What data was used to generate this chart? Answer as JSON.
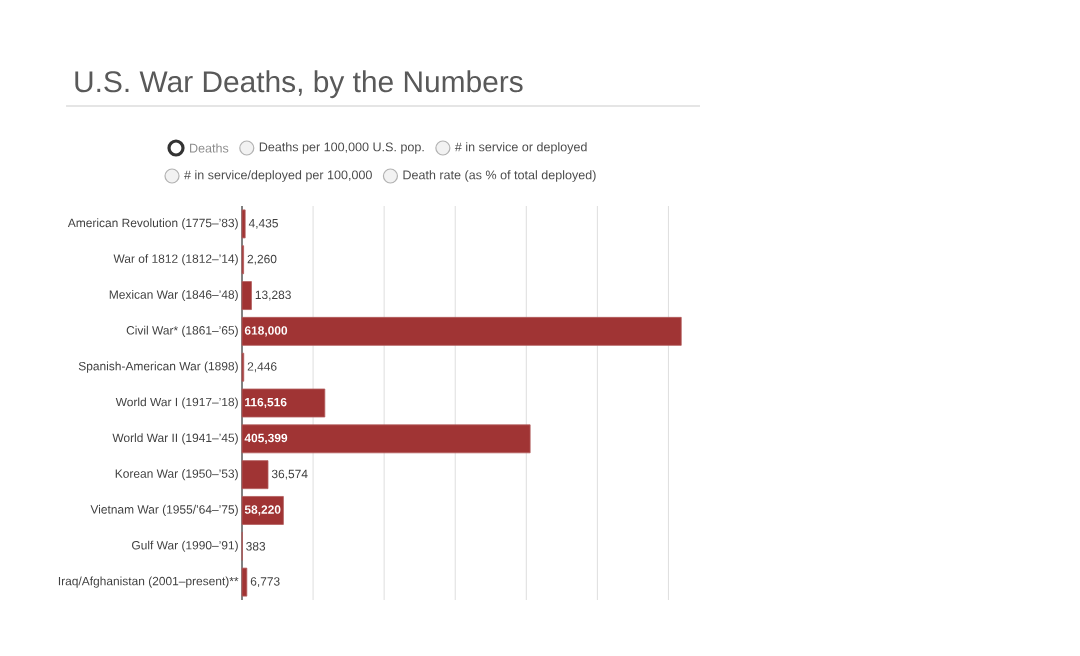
{
  "chart_data": {
    "type": "bar",
    "orientation": "horizontal",
    "title": "U.S. War Deaths, by the Numbers",
    "annotations": [
      "Deaths",
      "Deaths per 100,000 U.S. pop.",
      "# in service or deployed",
      "# in service/deployed per 100,000",
      "Death rate (as % of total deployed)"
    ],
    "categories": [
      "American Revolution (1775–’83)",
      "War of 1812 (1812–’14)",
      "Mexican War (1846–’48)",
      "Civil War* (1861–’65)",
      "Spanish-American War (1898)",
      "World War I (1917–’18)",
      "World War II (1941–’45)",
      "Korean War (1950–’53)",
      "Vietnam War (1955/’64–’75)",
      "Gulf War (1990–’91)",
      "Iraq/Afghanistan (2001–present)**"
    ],
    "values": [
      4435,
      2260,
      13283,
      618000,
      2446,
      116516,
      405399,
      36574,
      58220,
      383,
      6773
    ],
    "value_labels": [
      "4,435",
      "2,260",
      "13,283",
      "618,000",
      "2,446",
      "116,516",
      "405,399",
      "36,574",
      "58,220",
      "383",
      "6,773"
    ],
    "color": "#a03434",
    "grid": "x",
    "tick_labels": "y"
  }
}
